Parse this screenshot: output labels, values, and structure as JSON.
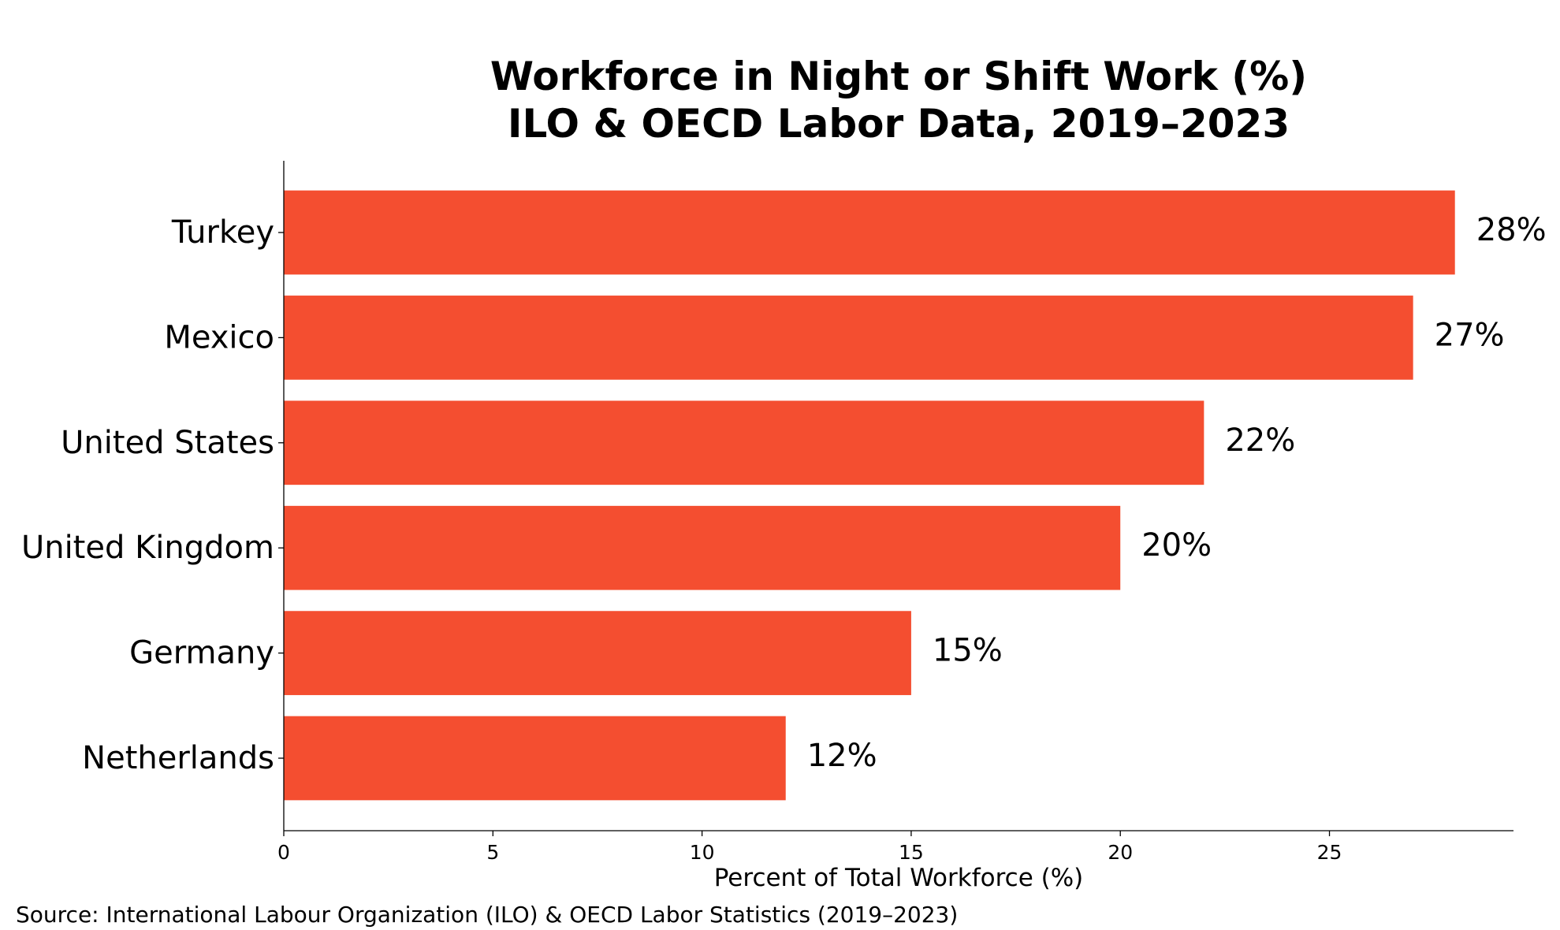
{
  "chart_data": {
    "type": "bar",
    "orientation": "horizontal",
    "title": "Workforce in Night or Shift Work (%)",
    "subtitle": "ILO & OECD Labor Data, 2019–2023",
    "categories": [
      "Turkey",
      "Mexico",
      "United States",
      "United Kingdom",
      "Germany",
      "Netherlands"
    ],
    "values": [
      28,
      27,
      22,
      20,
      15,
      12
    ],
    "value_labels": [
      "28%",
      "27%",
      "22%",
      "20%",
      "15%",
      "12%"
    ],
    "xlabel": "Percent of Total Workforce (%)",
    "ylabel": "",
    "xlim": [
      0,
      29.4
    ],
    "xticks": [
      0,
      5,
      10,
      15,
      20,
      25
    ],
    "xtick_labels": [
      "0",
      "5",
      "10",
      "15",
      "20",
      "25"
    ],
    "grid": false,
    "bar_color": "#F44E30",
    "source": "Source: International Labour Organization (ILO) & OECD Labor Statistics (2019–2023)"
  }
}
